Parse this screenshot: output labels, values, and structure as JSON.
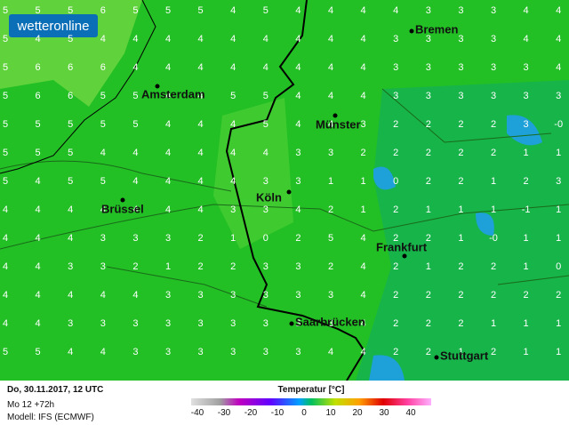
{
  "logo": "wetteronline",
  "cities": [
    {
      "label": "Bremen"
    },
    {
      "label": "Amsterdam"
    },
    {
      "label": "Münster"
    },
    {
      "label": "Köln"
    },
    {
      "label": "Brüssel"
    },
    {
      "label": "Frankfurt"
    },
    {
      "label": "Saarbrücken"
    },
    {
      "label": "Stuttgart"
    }
  ],
  "grid": [
    [
      5,
      5,
      5,
      6,
      5,
      5,
      5,
      4,
      5,
      4,
      4,
      4,
      4,
      3,
      3,
      3,
      4,
      4
    ],
    [
      5,
      4,
      5,
      4,
      4,
      4,
      4,
      4,
      4,
      4,
      4,
      4,
      3,
      3,
      3,
      3,
      4,
      4
    ],
    [
      5,
      6,
      6,
      6,
      4,
      4,
      4,
      4,
      4,
      4,
      4,
      4,
      3,
      3,
      3,
      3,
      3,
      4
    ],
    [
      5,
      6,
      6,
      5,
      5,
      4,
      4,
      5,
      5,
      4,
      4,
      4,
      3,
      3,
      3,
      3,
      3,
      3
    ],
    [
      5,
      5,
      5,
      5,
      5,
      4,
      4,
      4,
      5,
      4,
      4,
      3,
      2,
      2,
      2,
      2,
      3,
      "-0"
    ],
    [
      5,
      5,
      5,
      4,
      4,
      4,
      4,
      4,
      4,
      3,
      3,
      2,
      2,
      2,
      2,
      2,
      1,
      1
    ],
    [
      5,
      4,
      5,
      5,
      4,
      4,
      4,
      4,
      3,
      3,
      1,
      1,
      0,
      2,
      2,
      1,
      2,
      3
    ],
    [
      4,
      4,
      4,
      4,
      4,
      4,
      4,
      3,
      3,
      4,
      2,
      1,
      2,
      1,
      1,
      1,
      -1,
      1
    ],
    [
      4,
      4,
      4,
      3,
      3,
      3,
      2,
      1,
      0,
      2,
      5,
      4,
      2,
      2,
      1,
      "-0",
      1,
      1
    ],
    [
      4,
      4,
      3,
      3,
      2,
      1,
      2,
      2,
      3,
      3,
      2,
      4,
      2,
      1,
      2,
      2,
      1,
      0
    ],
    [
      4,
      4,
      4,
      4,
      4,
      3,
      3,
      3,
      3,
      3,
      3,
      4,
      2,
      2,
      2,
      2,
      2,
      2
    ],
    [
      4,
      4,
      3,
      3,
      3,
      3,
      3,
      3,
      3,
      3,
      3,
      4,
      2,
      2,
      2,
      1,
      1,
      1
    ],
    [
      5,
      5,
      4,
      4,
      3,
      3,
      3,
      3,
      3,
      3,
      4,
      4,
      2,
      2,
      1,
      2,
      1,
      1
    ]
  ],
  "footer": {
    "date": "Do, 30.11.2017, 12 UTC",
    "run": "Mo 12 +72h",
    "model": "Modell: IFS (ECMWF)"
  },
  "legend": {
    "title": "Temperatur [°C]",
    "ticks": [
      -40,
      -30,
      -20,
      -10,
      0,
      10,
      20,
      30,
      40
    ]
  }
}
